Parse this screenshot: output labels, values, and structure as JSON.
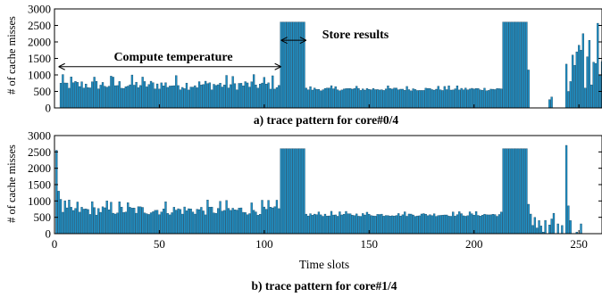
{
  "chart_data": [
    {
      "type": "bar",
      "title": "a) trace pattern for core#0/4",
      "xlabel": "",
      "ylabel": "# of cache misses",
      "xlim": [
        0,
        261
      ],
      "ylim": [
        0,
        3000
      ],
      "yticks": [
        0,
        500,
        1000,
        1500,
        2000,
        2500,
        3000
      ],
      "xticks": [
        0,
        50,
        100,
        150,
        200,
        250
      ],
      "show_xtick_labels": false,
      "bar_color": "#1f8fc4",
      "annotations": [
        {
          "text": "Compute temperature",
          "arrow_from_x": 2,
          "arrow_to_x": 108,
          "arrow_y": 1250
        },
        {
          "text": "Store results",
          "arrow_from_x": 108,
          "arrow_to_x": 120,
          "arrow_y": 2050
        }
      ],
      "segments": [
        {
          "x_start": 1,
          "x_end": 107,
          "level": 700,
          "pattern": "noisy",
          "spread": 450
        },
        {
          "x_start": 108,
          "x_end": 119,
          "level": 2600,
          "pattern": "flat"
        },
        {
          "x_start": 120,
          "x_end": 213,
          "level": 570,
          "pattern": "noisy",
          "spread": 150
        },
        {
          "x_start": 214,
          "x_end": 225,
          "level": 2600,
          "pattern": "flat"
        },
        {
          "x_start": 226,
          "x_end": 243,
          "level": 0,
          "pattern": "flat"
        },
        {
          "x_start": 244,
          "x_end": 261,
          "level": 1500,
          "pattern": "noisy",
          "spread": 1600
        }
      ],
      "overrides": [
        {
          "x": 1,
          "value": 0
        },
        {
          "x": 2,
          "value": 0
        },
        {
          "x": 3,
          "value": 750
        },
        {
          "x": 226,
          "value": 1150
        },
        {
          "x": 232,
          "value": 0
        },
        {
          "x": 236,
          "value": 250
        },
        {
          "x": 237,
          "value": 330
        },
        {
          "x": 245,
          "value": 500
        },
        {
          "x": 246,
          "value": 800
        },
        {
          "x": 249,
          "value": 1700
        },
        {
          "x": 250,
          "value": 1900
        },
        {
          "x": 251,
          "value": 1750
        },
        {
          "x": 252,
          "value": 2250
        },
        {
          "x": 253,
          "value": 600
        },
        {
          "x": 254,
          "value": 1550
        },
        {
          "x": 255,
          "value": 2050
        },
        {
          "x": 256,
          "value": 700
        },
        {
          "x": 258,
          "value": 1350
        }
      ]
    },
    {
      "type": "bar",
      "title": "b) trace pattern for core#1/4",
      "xlabel": "Time slots",
      "ylabel": "# of cache misses",
      "xlim": [
        0,
        261
      ],
      "ylim": [
        0,
        3000
      ],
      "yticks": [
        0,
        500,
        1000,
        1500,
        2000,
        2500,
        3000
      ],
      "xticks": [
        0,
        50,
        100,
        150,
        200,
        250
      ],
      "show_xtick_labels": true,
      "bar_color": "#1f8fc4",
      "annotations": [],
      "segments": [
        {
          "x_start": 1,
          "x_end": 107,
          "level": 720,
          "pattern": "noisy",
          "spread": 450
        },
        {
          "x_start": 108,
          "x_end": 119,
          "level": 2600,
          "pattern": "flat"
        },
        {
          "x_start": 120,
          "x_end": 213,
          "level": 580,
          "pattern": "noisy",
          "spread": 150
        },
        {
          "x_start": 214,
          "x_end": 225,
          "level": 2600,
          "pattern": "flat"
        },
        {
          "x_start": 226,
          "x_end": 243,
          "level": 300,
          "pattern": "noisy",
          "spread": 500
        },
        {
          "x_start": 244,
          "x_end": 261,
          "level": 0,
          "pattern": "flat"
        }
      ],
      "overrides": [
        {
          "x": 1,
          "value": 2550
        },
        {
          "x": 2,
          "value": 1300
        },
        {
          "x": 3,
          "value": 1050
        },
        {
          "x": 226,
          "value": 900
        },
        {
          "x": 227,
          "value": 600
        },
        {
          "x": 229,
          "value": 500
        },
        {
          "x": 231,
          "value": 400
        },
        {
          "x": 233,
          "value": 50
        },
        {
          "x": 235,
          "value": 0
        },
        {
          "x": 237,
          "value": 450
        },
        {
          "x": 239,
          "value": 0
        },
        {
          "x": 240,
          "value": 300
        },
        {
          "x": 241,
          "value": 0
        },
        {
          "x": 242,
          "value": 250
        },
        {
          "x": 243,
          "value": 0
        },
        {
          "x": 244,
          "value": 2700
        },
        {
          "x": 245,
          "value": 850
        },
        {
          "x": 246,
          "value": 400
        },
        {
          "x": 249,
          "value": 50
        },
        {
          "x": 251,
          "value": 300
        }
      ]
    }
  ]
}
